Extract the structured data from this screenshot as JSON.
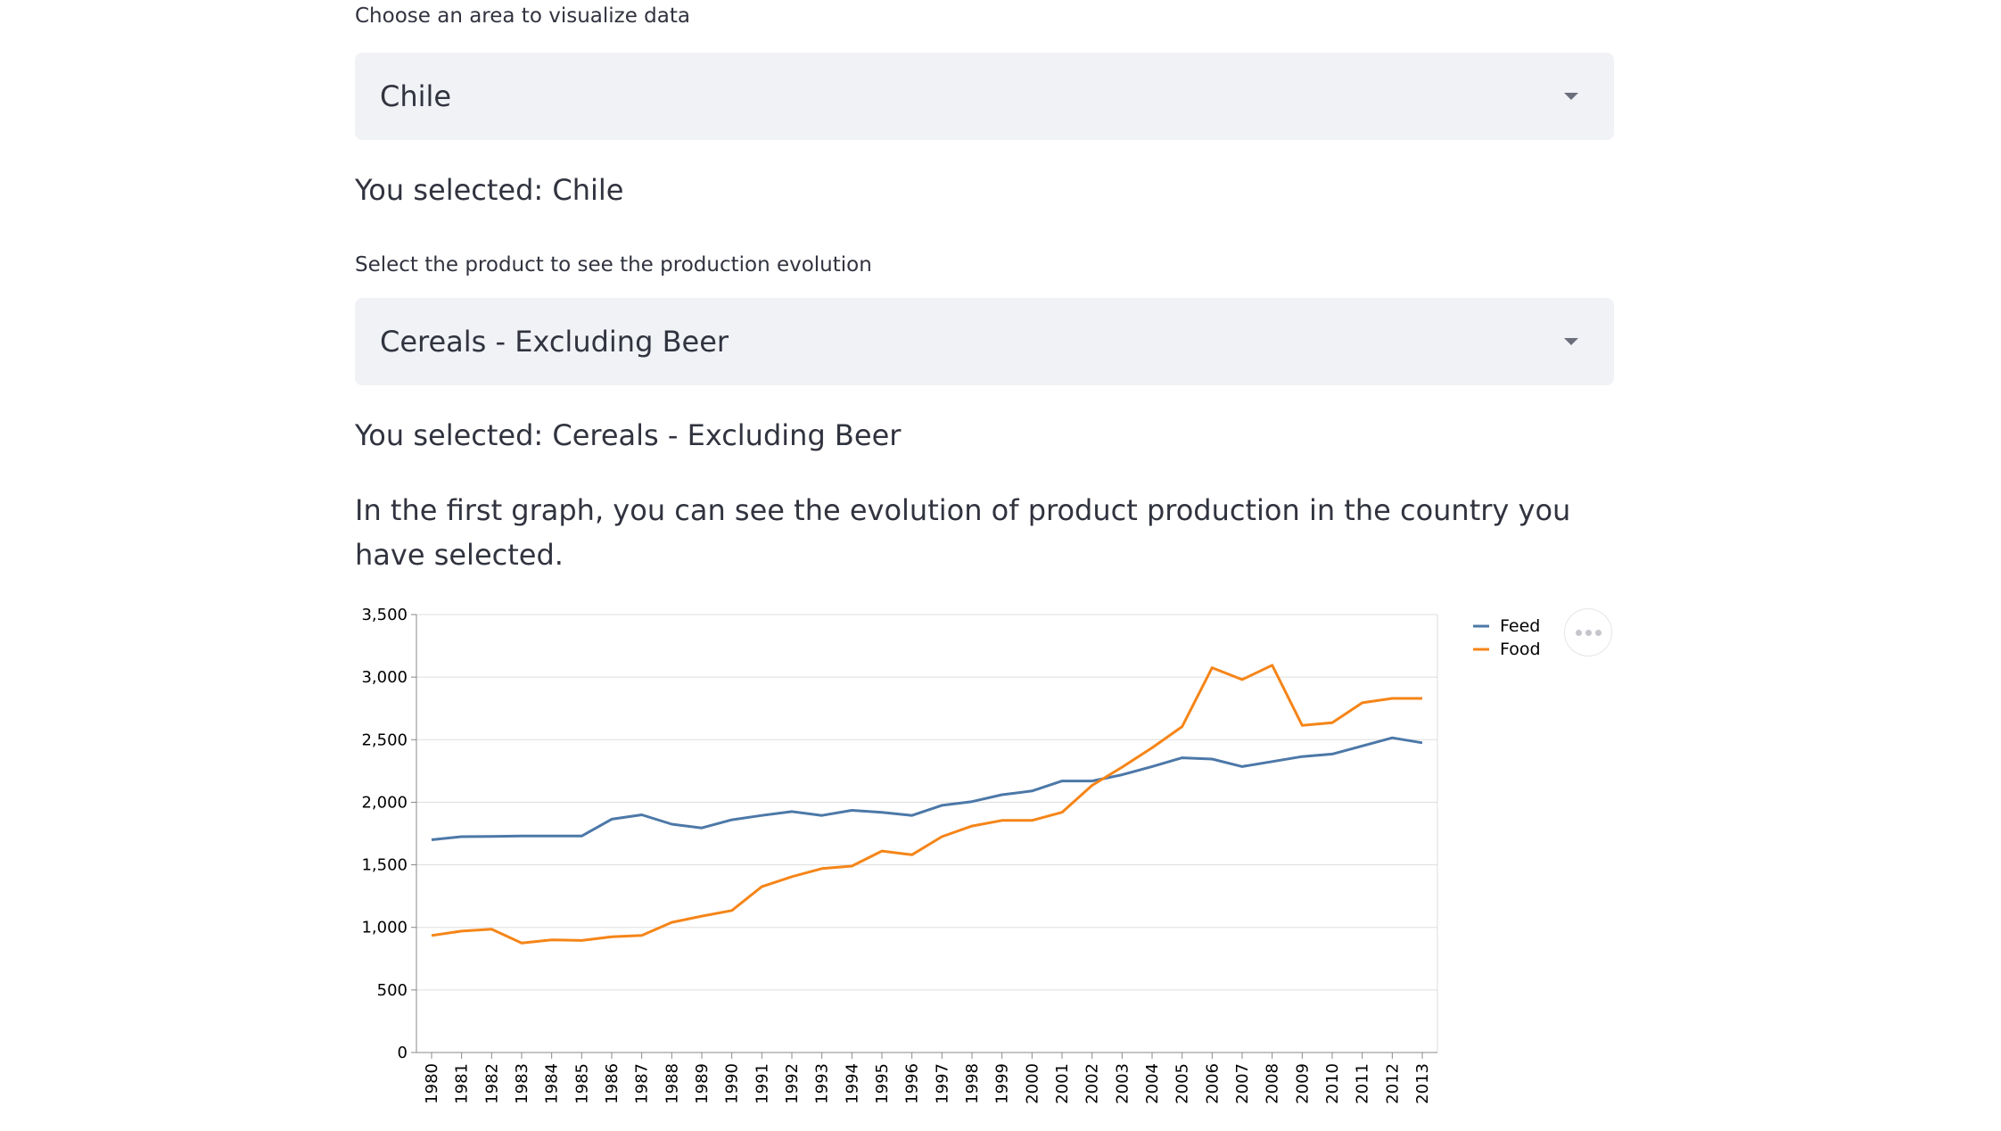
{
  "area_select": {
    "label": "Choose an area to visualize data",
    "value": "Chile",
    "selected_text": "You selected: Chile"
  },
  "product_select": {
    "label": "Select the product to see the production evolution",
    "value": "Cereals - Excluding Beer",
    "selected_text": "You selected: Cereals - Excluding Beer"
  },
  "description": "In the first graph, you can see the evolution of product production in the country you have selected.",
  "chart_menu_icon": "more-horizontal-icon",
  "chart_data": {
    "type": "line",
    "title": "",
    "xlabel": "",
    "ylabel": "",
    "x": [
      "1980",
      "1981",
      "1982",
      "1983",
      "1984",
      "1985",
      "1986",
      "1987",
      "1988",
      "1989",
      "1990",
      "1991",
      "1992",
      "1993",
      "1994",
      "1995",
      "1996",
      "1997",
      "1998",
      "1999",
      "2000",
      "2001",
      "2002",
      "2003",
      "2004",
      "2005",
      "2006",
      "2007",
      "2008",
      "2009",
      "2010",
      "2011",
      "2012",
      "2013"
    ],
    "ylim": [
      0,
      3500
    ],
    "yticks": [
      0,
      500,
      1000,
      1500,
      2000,
      2500,
      3000,
      3500
    ],
    "ytick_labels": [
      "0",
      "500",
      "1,000",
      "1,500",
      "2,000",
      "2,500",
      "3,000",
      "3,500"
    ],
    "grid": true,
    "legend_position": "right",
    "series": [
      {
        "name": "Feed",
        "color": "#4c78a8",
        "values": [
          1700,
          1725,
          1727,
          1730,
          1730,
          1730,
          1865,
          1900,
          1825,
          1795,
          1860,
          1895,
          1925,
          1895,
          1935,
          1920,
          1895,
          1975,
          2005,
          2060,
          2090,
          2170,
          2170,
          2220,
          2285,
          2355,
          2345,
          2285,
          2325,
          2365,
          2385,
          2450,
          2515,
          2475
        ]
      },
      {
        "name": "Food",
        "color": "#f58518",
        "values": [
          935,
          970,
          985,
          875,
          900,
          895,
          925,
          935,
          1040,
          1090,
          1135,
          1325,
          1405,
          1470,
          1490,
          1610,
          1580,
          1725,
          1810,
          1855,
          1855,
          1920,
          2135,
          2280,
          2435,
          2605,
          3075,
          2980,
          3095,
          2615,
          2635,
          2795,
          2830,
          2830
        ]
      }
    ]
  }
}
